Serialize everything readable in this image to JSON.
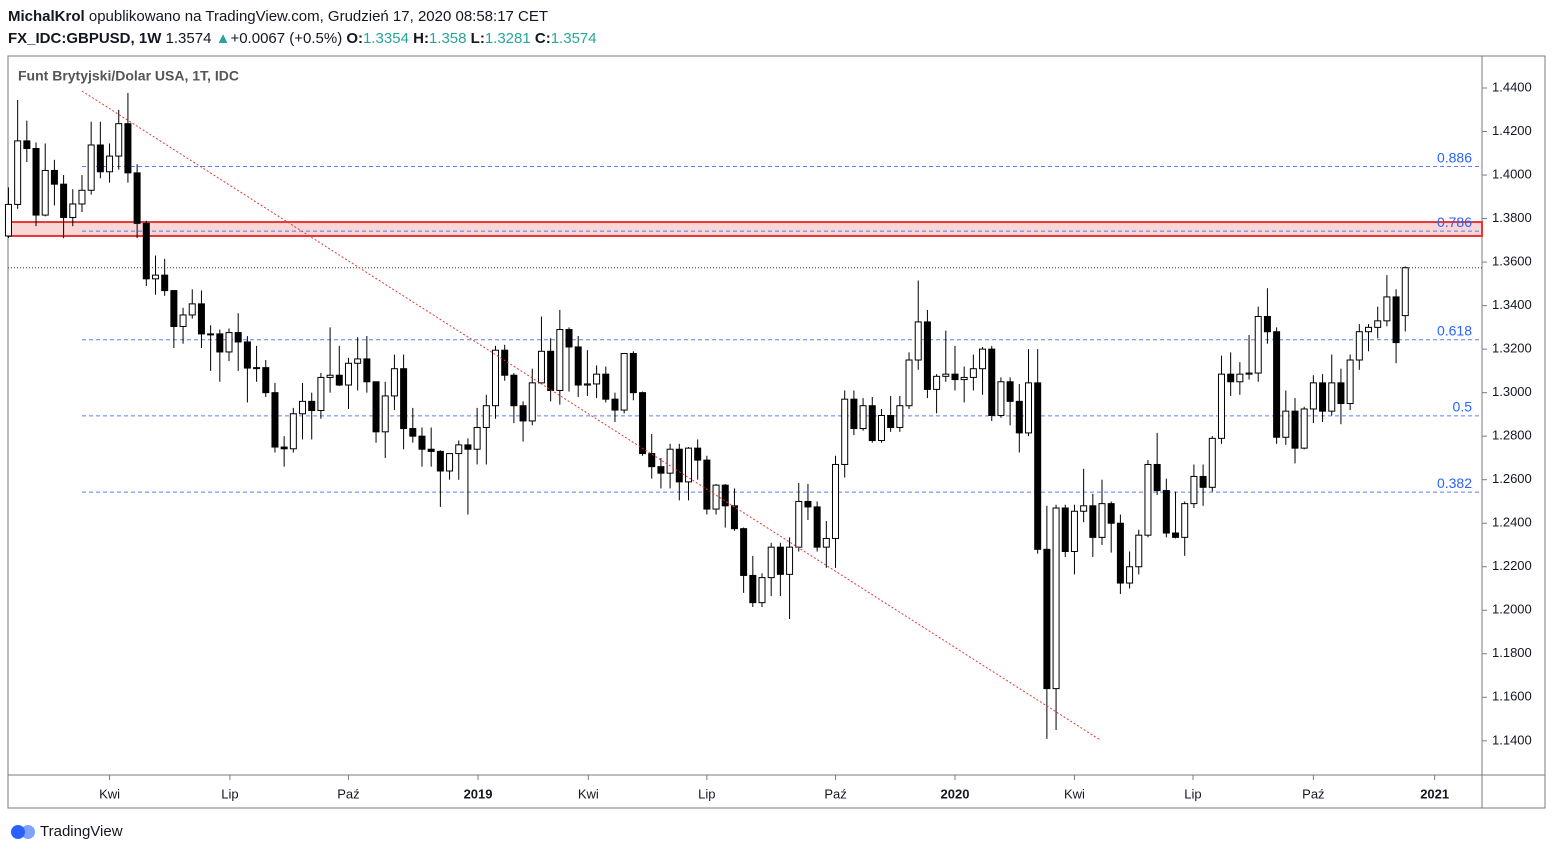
{
  "header": {
    "author": "MichalKrol",
    "published": "opublikowano na TradingView.com, Grudzień 17, 2020 08:58:17 CET",
    "symbol": "FX_IDC:GBPUSD, 1W",
    "arrow": "▲",
    "change": "+0.0067 (+0.5%)",
    "o": "O:",
    "h": "H:",
    "l": "L:",
    "c": "C:"
  },
  "footer": {
    "brand": "TradingView"
  },
  "chart_data": {
    "type": "candlestick",
    "title": "Funt Brytyjski/Dolar USA, 1T, IDC",
    "open": [
      1.372,
      1.3865,
      1.4157,
      1.4122,
      1.3816,
      1.4021,
      1.3958,
      1.3805,
      1.3867,
      1.393,
      1.4138,
      1.4015,
      1.4087,
      1.4236,
      1.401,
      1.3778,
      1.3523,
      1.354,
      1.3469,
      1.3304,
      1.3357,
      1.3408,
      1.327,
      1.327,
      1.3187,
      1.3276,
      1.3233,
      1.3113,
      1.3115,
      1.3,
      1.275,
      1.2742,
      1.2903,
      1.296,
      1.2918,
      1.307,
      1.308,
      1.3035,
      1.3135,
      1.3155,
      1.305,
      1.282,
      1.2985,
      1.311,
      1.2835,
      1.28,
      1.274,
      1.273,
      1.264,
      1.272,
      1.276,
      1.274,
      1.284,
      1.294,
      1.3195,
      1.308,
      1.294,
      1.287,
      1.3045,
      1.319,
      1.301,
      1.329,
      1.321,
      1.3035,
      1.304,
      1.3085,
      1.297,
      1.292,
      1.318,
      1.3,
      1.272,
      1.266,
      1.263,
      1.274,
      1.259,
      1.2745,
      1.269,
      1.2465,
      1.2575,
      1.248,
      1.2375,
      1.216,
      1.2035,
      1.215,
      1.229,
      1.2165,
      1.229,
      1.25,
      1.2475,
      1.229,
      1.233,
      1.267,
      1.297,
      1.2835,
      1.294,
      1.278,
      1.2895,
      1.284,
      1.294,
      1.315,
      1.3325,
      1.3015,
      1.3075,
      1.3085,
      1.306,
      1.307,
      1.311,
      1.32,
      1.2895,
      1.305,
      1.296,
      1.2815,
      1.3045,
      1.228,
      1.164,
      1.247,
      1.227,
      1.2455,
      1.248,
      1.2335,
      1.249,
      1.24,
      1.2125,
      1.22,
      1.2345,
      1.267,
      1.255,
      1.2355,
      1.2335,
      1.249,
      1.2615,
      1.2565,
      1.279,
      1.3085,
      1.305,
      1.3085,
      1.309,
      1.335,
      1.328,
      1.2795,
      1.2915,
      1.2745,
      1.2925,
      1.3045,
      1.2915,
      1.3045,
      1.295,
      1.315,
      1.328,
      1.33,
      1.333,
      1.344,
      1.3354
    ],
    "high": [
      1.3943,
      1.4345,
      1.425,
      1.415,
      1.4145,
      1.407,
      1.4,
      1.3935,
      1.4,
      1.4245,
      1.4245,
      1.4145,
      1.43,
      1.4377,
      1.405,
      1.379,
      1.363,
      1.3615,
      1.347,
      1.339,
      1.3475,
      1.347,
      1.331,
      1.329,
      1.3295,
      1.3365,
      1.326,
      1.3215,
      1.315,
      1.3045,
      1.28,
      1.293,
      1.3045,
      1.3,
      1.309,
      1.33,
      1.3215,
      1.316,
      1.3255,
      1.326,
      1.305,
      1.305,
      1.3175,
      1.3175,
      1.293,
      1.284,
      1.284,
      1.2735,
      1.272,
      1.278,
      1.279,
      1.293,
      1.299,
      1.3215,
      1.322,
      1.309,
      1.296,
      1.311,
      1.335,
      1.325,
      1.338,
      1.33,
      1.326,
      1.3195,
      1.3125,
      1.312,
      1.3,
      1.3175,
      1.319,
      1.3005,
      1.281,
      1.27,
      1.2765,
      1.2765,
      1.275,
      1.2785,
      1.271,
      1.258,
      1.258,
      1.256,
      1.238,
      1.225,
      1.217,
      1.231,
      1.231,
      1.2335,
      1.2585,
      1.258,
      1.25,
      1.241,
      1.271,
      1.301,
      1.301,
      1.2975,
      1.298,
      1.2925,
      1.2985,
      1.2985,
      1.3185,
      1.3515,
      1.338,
      1.3085,
      1.3285,
      1.3215,
      1.312,
      1.3175,
      1.321,
      1.3215,
      1.307,
      1.307,
      1.304,
      1.32,
      1.32,
      1.248,
      1.2485,
      1.2485,
      1.2485,
      1.265,
      1.2535,
      1.26,
      1.25,
      1.244,
      1.227,
      1.237,
      1.269,
      1.2815,
      1.2605,
      1.2545,
      1.25,
      1.267,
      1.267,
      1.28,
      1.317,
      1.3185,
      1.314,
      1.3265,
      1.3395,
      1.348,
      1.33,
      1.301,
      1.2975,
      1.2935,
      1.308,
      1.3085,
      1.3175,
      1.311,
      1.3175,
      1.3315,
      1.3315,
      1.3395,
      1.354,
      1.3475,
      1.358
    ],
    "low": [
      1.371,
      1.3845,
      1.406,
      1.3765,
      1.381,
      1.386,
      1.371,
      1.3765,
      1.383,
      1.391,
      1.3985,
      1.3965,
      1.4025,
      1.3965,
      1.371,
      1.349,
      1.345,
      1.3445,
      1.3205,
      1.3225,
      1.334,
      1.3205,
      1.31,
      1.305,
      1.3145,
      1.31,
      1.2955,
      1.305,
      1.298,
      1.2725,
      1.266,
      1.2725,
      1.2785,
      1.2785,
      1.288,
      1.3,
      1.303,
      1.2925,
      1.301,
      1.3,
      1.277,
      1.27,
      1.292,
      1.274,
      1.277,
      1.266,
      1.266,
      1.2475,
      1.26,
      1.26,
      1.244,
      1.267,
      1.267,
      1.288,
      1.3055,
      1.286,
      1.2775,
      1.285,
      1.304,
      1.296,
      1.2945,
      1.3005,
      1.298,
      1.2985,
      1.2975,
      1.2955,
      1.2865,
      1.2905,
      1.2965,
      1.271,
      1.2605,
      1.256,
      1.256,
      1.2505,
      1.2505,
      1.26,
      1.244,
      1.244,
      1.238,
      1.2365,
      1.208,
      1.2015,
      1.2015,
      1.2065,
      1.2065,
      1.196,
      1.227,
      1.2415,
      1.227,
      1.2195,
      1.2195,
      1.261,
      1.2805,
      1.2825,
      1.277,
      1.277,
      1.282,
      1.282,
      1.2925,
      1.3105,
      1.2975,
      1.2905,
      1.305,
      1.301,
      1.2955,
      1.301,
      1.299,
      1.287,
      1.2885,
      1.285,
      1.2725,
      1.28,
      1.226,
      1.1409,
      1.145,
      1.2245,
      1.2165,
      1.2405,
      1.2245,
      1.23,
      1.2265,
      1.2075,
      1.21,
      1.2165,
      1.2335,
      1.253,
      1.2335,
      1.233,
      1.225,
      1.247,
      1.248,
      1.2545,
      1.2765,
      1.2985,
      1.299,
      1.306,
      1.305,
      1.3225,
      1.2765,
      1.276,
      1.2675,
      1.274,
      1.286,
      1.2865,
      1.2895,
      1.2855,
      1.292,
      1.3105,
      1.319,
      1.325,
      1.3305,
      1.3135,
      1.3281
    ],
    "close": [
      1.3865,
      1.4157,
      1.4122,
      1.3816,
      1.4021,
      1.3958,
      1.3805,
      1.3867,
      1.393,
      1.4138,
      1.4015,
      1.4087,
      1.4236,
      1.401,
      1.3778,
      1.3523,
      1.354,
      1.3469,
      1.3304,
      1.3357,
      1.3408,
      1.327,
      1.327,
      1.3187,
      1.3276,
      1.3233,
      1.3113,
      1.3115,
      1.3,
      1.275,
      1.2742,
      1.2903,
      1.296,
      1.2918,
      1.307,
      1.308,
      1.3035,
      1.3135,
      1.3155,
      1.305,
      1.282,
      1.2985,
      1.311,
      1.2835,
      1.28,
      1.274,
      1.273,
      1.264,
      1.272,
      1.276,
      1.274,
      1.284,
      1.294,
      1.3195,
      1.308,
      1.294,
      1.287,
      1.3045,
      1.319,
      1.301,
      1.329,
      1.321,
      1.3035,
      1.304,
      1.3085,
      1.297,
      1.292,
      1.318,
      1.3,
      1.272,
      1.266,
      1.263,
      1.274,
      1.259,
      1.2745,
      1.269,
      1.2465,
      1.2575,
      1.248,
      1.2375,
      1.216,
      1.2035,
      1.215,
      1.229,
      1.2165,
      1.229,
      1.25,
      1.2475,
      1.229,
      1.233,
      1.267,
      1.297,
      1.2835,
      1.294,
      1.278,
      1.2895,
      1.284,
      1.294,
      1.315,
      1.3325,
      1.3015,
      1.3075,
      1.3085,
      1.306,
      1.307,
      1.311,
      1.32,
      1.2895,
      1.305,
      1.296,
      1.2815,
      1.3045,
      1.228,
      1.164,
      1.247,
      1.227,
      1.2455,
      1.248,
      1.2335,
      1.249,
      1.24,
      1.2125,
      1.22,
      1.2345,
      1.267,
      1.255,
      1.2355,
      1.2335,
      1.249,
      1.2615,
      1.2565,
      1.279,
      1.3085,
      1.305,
      1.3085,
      1.309,
      1.335,
      1.328,
      1.2795,
      1.2915,
      1.2745,
      1.2925,
      1.3045,
      1.2915,
      1.3045,
      1.295,
      1.315,
      1.328,
      1.33,
      1.333,
      1.344,
      1.323,
      1.3574
    ],
    "up_color": "#ffffff",
    "down_color": "#000000",
    "xlim": [
      -0.05,
      160.35
    ],
    "xticks": [
      {
        "value": 11,
        "label": "Kwi"
      },
      {
        "value": 24.1,
        "label": "Lip"
      },
      {
        "value": 37,
        "label": "Paź"
      },
      {
        "value": 51.1,
        "label": "2019"
      },
      {
        "value": 63.1,
        "label": "Kwi"
      },
      {
        "value": 76,
        "label": "Lip"
      },
      {
        "value": 90,
        "label": "Paź"
      },
      {
        "value": 103,
        "label": "2020"
      },
      {
        "value": 116,
        "label": "Kwi"
      },
      {
        "value": 128.9,
        "label": "Lip"
      },
      {
        "value": 142,
        "label": "Paź"
      },
      {
        "value": 155.2,
        "label": "2021"
      }
    ],
    "ylim": [
      1.1243,
      1.4547
    ],
    "yticks": [
      {
        "value": 1.14,
        "label": "1.1400"
      },
      {
        "value": 1.16,
        "label": "1.1600"
      },
      {
        "value": 1.18,
        "label": "1.1800"
      },
      {
        "value": 1.2,
        "label": "1.2000"
      },
      {
        "value": 1.22,
        "label": "1.2200"
      },
      {
        "value": 1.24,
        "label": "1.2400"
      },
      {
        "value": 1.26,
        "label": "1.2600"
      },
      {
        "value": 1.28,
        "label": "1.2800"
      },
      {
        "value": 1.3,
        "label": "1.3000"
      },
      {
        "value": 1.32,
        "label": "1.3200"
      },
      {
        "value": 1.34,
        "label": "1.3400"
      },
      {
        "value": 1.36,
        "label": "1.3600"
      },
      {
        "value": 1.38,
        "label": "1.3800"
      },
      {
        "value": 1.4,
        "label": "1.4000"
      },
      {
        "value": 1.42,
        "label": "1.4200"
      },
      {
        "value": 1.44,
        "label": "1.4400"
      }
    ],
    "fib_levels": [
      {
        "value": 1.4039,
        "label": "0.886"
      },
      {
        "value": 1.3742,
        "label": "0.786"
      },
      {
        "value": 1.3243,
        "label": "0.618"
      },
      {
        "value": 1.2893,
        "label": "0.5"
      },
      {
        "value": 1.2543,
        "label": "0.382"
      }
    ],
    "fib_color": "#2962ff",
    "zone": [
      1.372,
      1.3784
    ],
    "zone_color": "#e53935",
    "trendline": {
      "x": [
        8,
        118.8
      ],
      "y": [
        1.4386,
        1.1404
      ],
      "color": "#e53935"
    }
  }
}
